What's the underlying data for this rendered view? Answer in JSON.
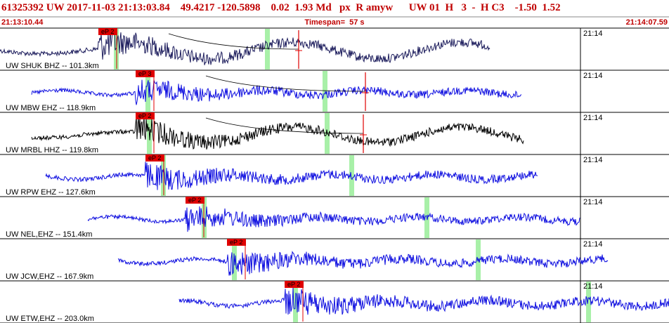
{
  "header": {
    "title": "61325392 UW 2017-11-03 21:13:03.84    49.4217 -120.5898    0.02  1.93 Md   px  R amyw      UW 01  H   3  -  H C3    -1.50  1.52",
    "start_time": "21:13:10.44",
    "timespan": "Timespan=  57 s",
    "end_time": "21:14:07.59"
  },
  "traces": [
    {
      "label": "UW SHUK BHZ -- 101.3km",
      "pick": "eP 2",
      "time_label": "21:14"
    },
    {
      "label": "UW MBW EHZ -- 118.9km",
      "pick": "eP 3",
      "time_label": "21:14"
    },
    {
      "label": "UW MRBL HHZ -- 119.8km",
      "pick": "eP 2",
      "time_label": "21:14"
    },
    {
      "label": "UW RPW EHZ -- 127.6km",
      "pick": "eP 2",
      "time_label": "21:14"
    },
    {
      "label": "UW NEL,EHZ -- 151.4km",
      "pick": "eP 2",
      "time_label": "21:14"
    },
    {
      "label": "UW JCW,EHZ -- 167.9km",
      "pick": "eP 2",
      "time_label": "21:14"
    },
    {
      "label": "UW ETW,EHZ -- 203.0km",
      "pick": "eP 2",
      "time_label": "21:14"
    }
  ]
}
